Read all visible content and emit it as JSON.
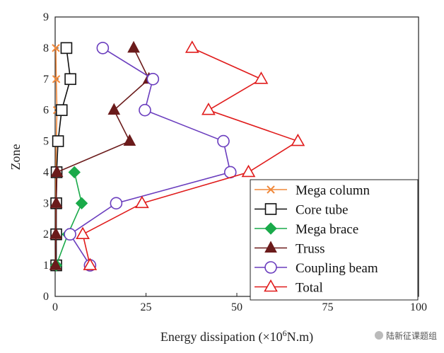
{
  "chart_data": {
    "type": "line",
    "xlabel_prefix": "Energy dissipation (×10",
    "xlabel_sup": "6",
    "xlabel_suffix": "N.m)",
    "ylabel": "Zone",
    "xlim": [
      0,
      100
    ],
    "ylim": [
      0,
      9
    ],
    "xticks": [
      0,
      25,
      50,
      75,
      100
    ],
    "yticks": [
      0,
      1,
      2,
      3,
      4,
      5,
      6,
      7,
      8,
      9
    ],
    "grid": false,
    "legend_position": "bottom-right",
    "series": [
      {
        "name": "Mega column",
        "marker": "x",
        "color": "#f0883a",
        "points": [
          [
            0.1,
            1
          ],
          [
            0.2,
            2
          ],
          [
            0.2,
            3
          ],
          [
            0.2,
            4
          ],
          [
            0.3,
            5
          ],
          [
            0.5,
            6
          ],
          [
            0.3,
            7
          ],
          [
            0.2,
            8
          ]
        ]
      },
      {
        "name": "Core tube",
        "marker": "square",
        "color": "#111111",
        "points": [
          [
            0.3,
            1
          ],
          [
            0.3,
            2
          ],
          [
            0.3,
            3
          ],
          [
            0.4,
            4
          ],
          [
            0.8,
            5
          ],
          [
            1.8,
            6
          ],
          [
            4.2,
            7
          ],
          [
            3.1,
            8
          ]
        ]
      },
      {
        "name": "Mega brace",
        "marker": "diamond",
        "color": "#1aaa4a",
        "points": [
          [
            0.3,
            1
          ],
          [
            3.5,
            2
          ],
          [
            7.3,
            3
          ],
          [
            5.3,
            4
          ]
        ]
      },
      {
        "name": "Truss",
        "marker": "triangle-filled",
        "color": "#6b1b1b",
        "points": [
          [
            0.1,
            1
          ],
          [
            0.2,
            2
          ],
          [
            0.3,
            3
          ],
          [
            0.5,
            4
          ],
          [
            20.5,
            5
          ],
          [
            16.2,
            6
          ],
          [
            25.8,
            7
          ],
          [
            21.6,
            8
          ]
        ]
      },
      {
        "name": "Coupling beam",
        "marker": "circle",
        "color": "#6a3dbe",
        "points": [
          [
            9.6,
            1
          ],
          [
            4.1,
            2
          ],
          [
            16.8,
            3
          ],
          [
            48.2,
            4
          ],
          [
            46.3,
            5
          ],
          [
            24.7,
            6
          ],
          [
            26.9,
            7
          ],
          [
            13.1,
            8
          ]
        ]
      },
      {
        "name": "Total",
        "marker": "triangle-open",
        "color": "#e01b1b",
        "points": [
          [
            9.6,
            1
          ],
          [
            7.6,
            2
          ],
          [
            23.9,
            3
          ],
          [
            53.2,
            4
          ],
          [
            66.8,
            5
          ],
          [
            42.2,
            6
          ],
          [
            56.7,
            7
          ],
          [
            37.7,
            8
          ]
        ]
      }
    ]
  },
  "watermark": {
    "text": "陆新征课题组"
  }
}
